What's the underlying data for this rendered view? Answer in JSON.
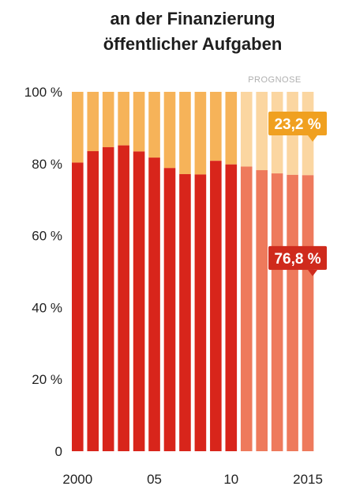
{
  "chart_data": {
    "type": "bar",
    "stacked": true,
    "title_lines": [
      "an der Finanzierung",
      "öffentlicher Aufgaben"
    ],
    "forecast_label": "PROGNOSE",
    "categories": [
      "2000",
      "2001",
      "2002",
      "2003",
      "2004",
      "2005",
      "2006",
      "2007",
      "2008",
      "2009",
      "2010",
      "2011",
      "2012",
      "2013",
      "2014",
      "2015"
    ],
    "x_tick_labels": [
      {
        "index": 0,
        "label": "2000"
      },
      {
        "index": 5,
        "label": "05"
      },
      {
        "index": 10,
        "label": "10"
      },
      {
        "index": 15,
        "label": "2015"
      }
    ],
    "forecast_start_index": 11,
    "series": [
      {
        "values": [
          80.3,
          83.5,
          84.6,
          85.1,
          83.4,
          81.7,
          78.8,
          77.1,
          77.0,
          80.8,
          79.8,
          79.2,
          78.2,
          77.3,
          76.9,
          76.8
        ]
      },
      {
        "values": [
          19.7,
          16.5,
          15.4,
          14.9,
          16.6,
          18.3,
          21.2,
          22.9,
          23.0,
          19.2,
          20.2,
          20.8,
          21.8,
          22.7,
          23.1,
          23.2
        ]
      }
    ],
    "yticks": [
      {
        "value": 0,
        "label": "0"
      },
      {
        "value": 20,
        "label": "20 %"
      },
      {
        "value": 40,
        "label": "40 %"
      },
      {
        "value": 60,
        "label": "60 %"
      },
      {
        "value": 80,
        "label": "80 %"
      },
      {
        "value": 100,
        "label": "100 %"
      }
    ],
    "ylim": [
      0,
      100
    ],
    "callouts": [
      {
        "label": "23,2 %",
        "color": "#f0a020"
      },
      {
        "label": "76,8 %",
        "color": "#cf2a1c"
      }
    ],
    "colors": {
      "bottom": "#d8251b",
      "top": "#f6b359",
      "bottom_forecast": "#ee7a5c",
      "top_forecast": "#fbd6a1"
    }
  }
}
